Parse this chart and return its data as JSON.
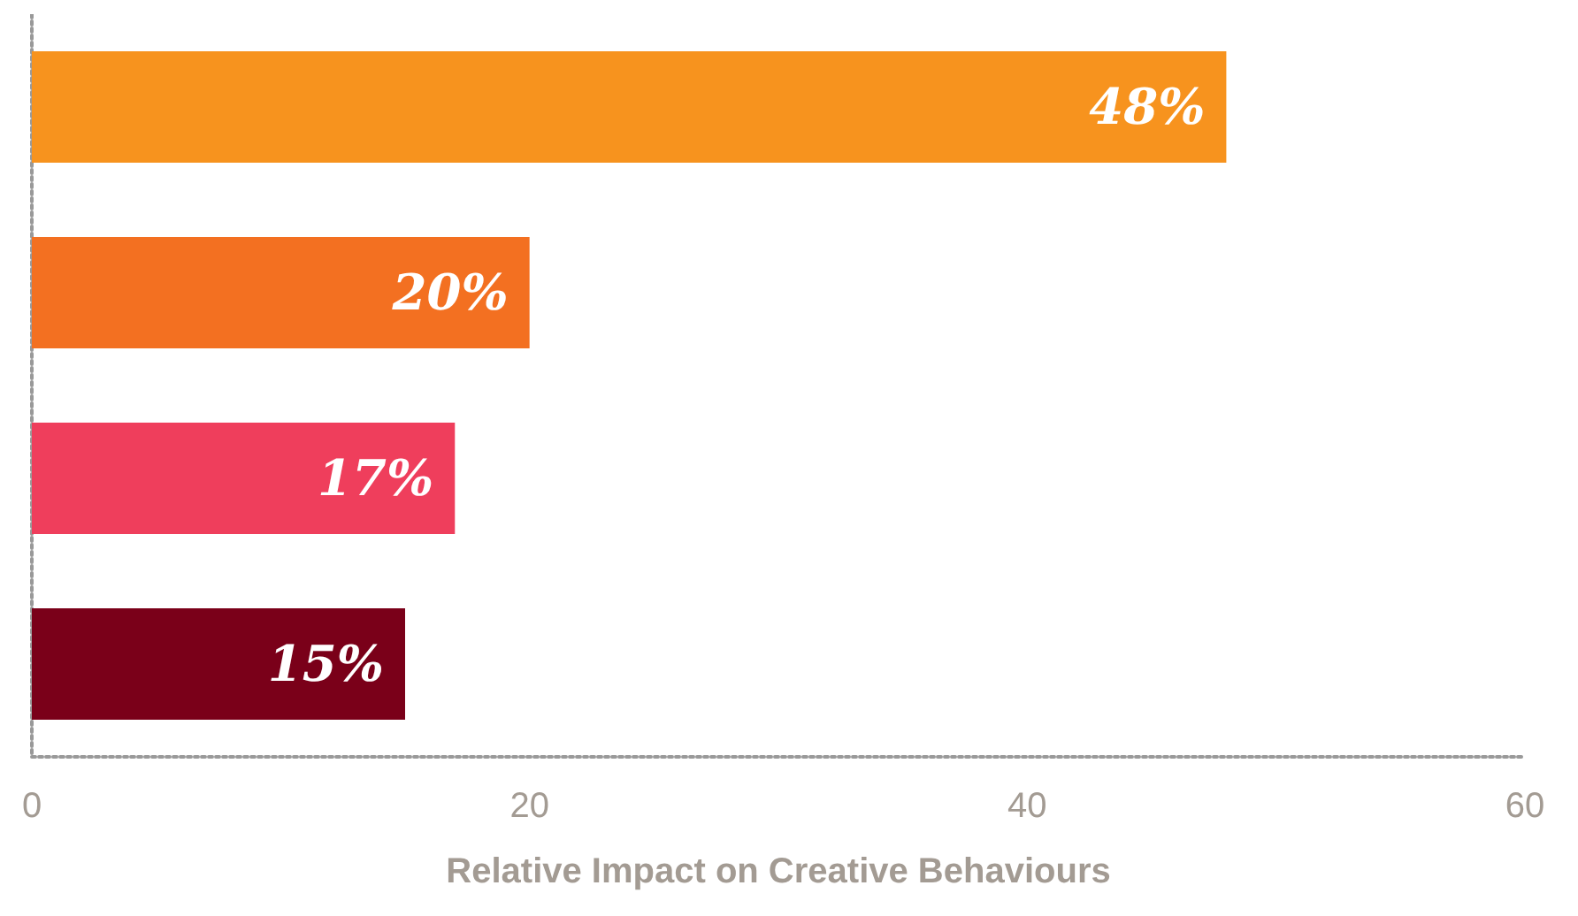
{
  "chart_data": {
    "type": "bar",
    "orientation": "horizontal",
    "xlabel": "Relative Impact on Creative Behaviours",
    "categories": [
      null,
      null,
      null,
      null
    ],
    "values": [
      48,
      20,
      17,
      15
    ],
    "colors": [
      "#f7931e",
      "#f37021",
      "#ef3e5c",
      "#7a0019"
    ],
    "value_labels": [
      "48%",
      "20%",
      "17%",
      "15%"
    ],
    "xlim": [
      0,
      60
    ],
    "xticks": [
      0,
      20,
      40,
      60
    ],
    "tick_labels": "x",
    "grid": false
  }
}
